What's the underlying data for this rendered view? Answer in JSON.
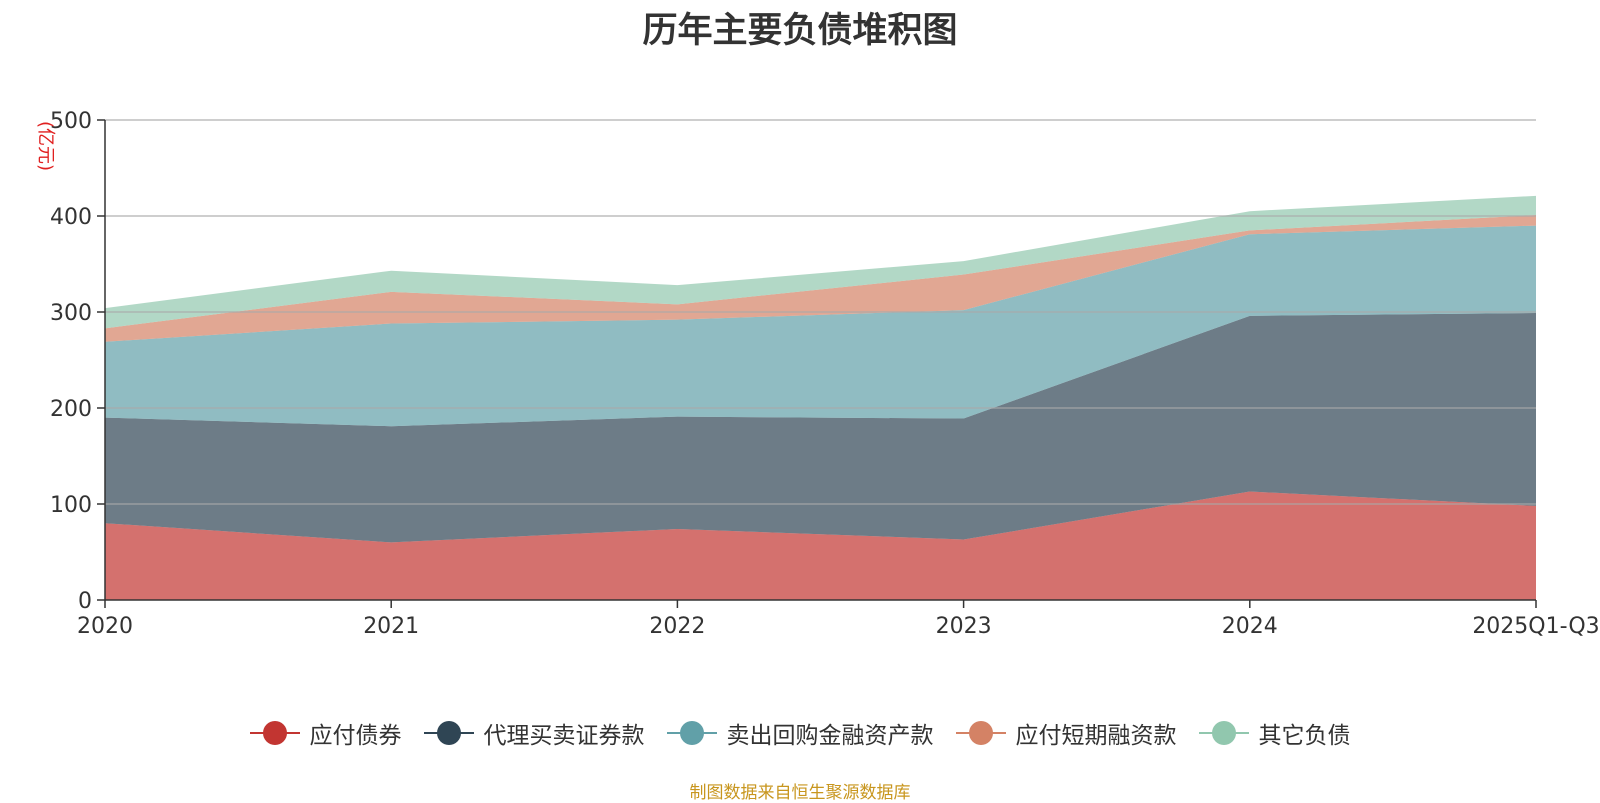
{
  "chart_data": {
    "type": "area",
    "stacked": true,
    "title": "历年主要负债堆积图",
    "unit": "(亿元)",
    "categories": [
      "2020",
      "2021",
      "2022",
      "2023",
      "2024",
      "2025Q1-Q3"
    ],
    "ylim": [
      0,
      500
    ],
    "yticks": [
      "0",
      "100",
      "200",
      "300",
      "400",
      "500"
    ],
    "grid": true,
    "legend_position": "bottom",
    "series": [
      {
        "name": "应付债券",
        "color": "#c23531",
        "values": [
          80,
          60,
          74,
          63,
          113,
          98
        ]
      },
      {
        "name": "代理买卖证券款",
        "color": "#2f4554",
        "values": [
          110,
          121,
          117,
          126,
          183,
          201
        ]
      },
      {
        "name": "卖出回购金融资产款",
        "color": "#61a0a8",
        "values": [
          79,
          107,
          101,
          113,
          85,
          91
        ]
      },
      {
        "name": "应付短期融资款",
        "color": "#d48265",
        "values": [
          14,
          33,
          16,
          37,
          4,
          11
        ]
      },
      {
        "name": "其它负债",
        "color": "#91c7ae",
        "values": [
          21,
          22,
          20,
          14,
          20,
          20
        ]
      }
    ]
  },
  "source": {
    "text": "制图数据来自恒生聚源数据库",
    "color": "#c8961e"
  },
  "unit_color": "#e02020"
}
